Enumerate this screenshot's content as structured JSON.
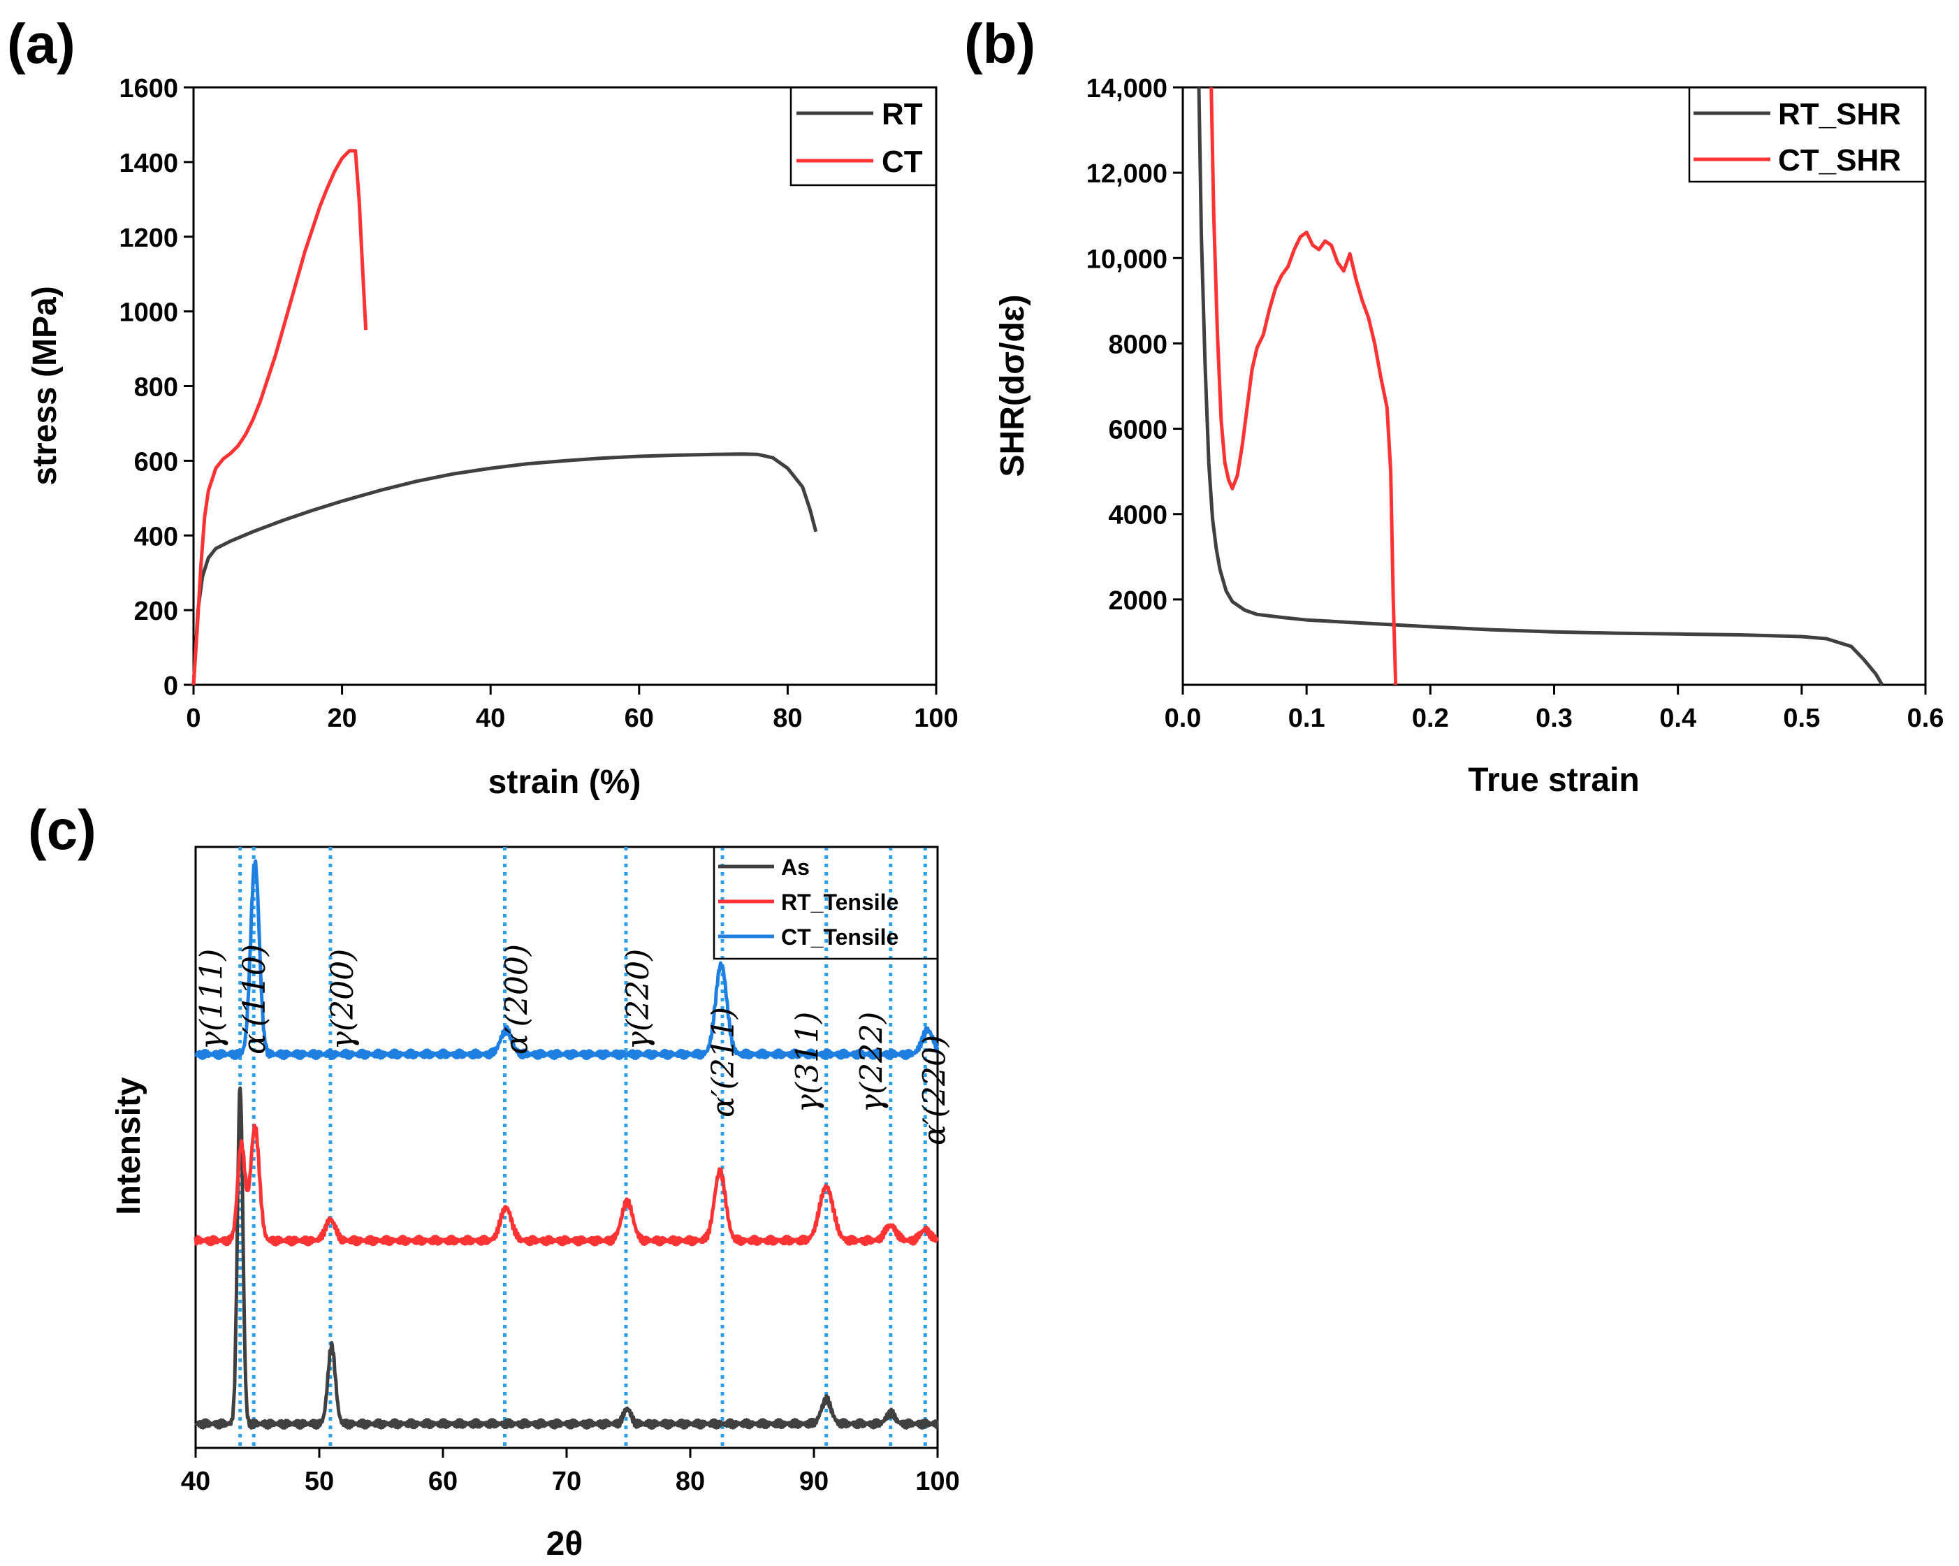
{
  "panel_labels": [
    "(a)",
    "(b)",
    "(c)"
  ],
  "chart_data": [
    {
      "id": "a",
      "type": "line",
      "xlabel": "strain (%)",
      "ylabel": "stress (MPa)",
      "xlim": [
        0,
        100
      ],
      "ylim": [
        0,
        1600
      ],
      "xticks": [
        0,
        20,
        40,
        60,
        80,
        100
      ],
      "yticks": [
        0,
        200,
        400,
        600,
        800,
        1000,
        1200,
        1400,
        1600
      ],
      "xtick_labels": [
        "0",
        "20",
        "40",
        "60",
        "80",
        "100"
      ],
      "ytick_labels": [
        "0",
        "200",
        "400",
        "600",
        "800",
        "1000",
        "1200",
        "1400",
        "1600"
      ],
      "legend": "top-right",
      "series": [
        {
          "name": "RT",
          "color": "#404040",
          "x": [
            0,
            0.6,
            1.2,
            2,
            3,
            5,
            8,
            12,
            16,
            20,
            25,
            30,
            35,
            40,
            45,
            50,
            55,
            60,
            65,
            70,
            74,
            76,
            78,
            80,
            82,
            83,
            83.8
          ],
          "y": [
            0,
            200,
            290,
            340,
            365,
            385,
            410,
            440,
            467,
            492,
            520,
            545,
            565,
            580,
            592,
            600,
            607,
            612,
            615,
            617,
            618,
            617,
            608,
            580,
            530,
            470,
            410
          ]
        },
        {
          "name": "CT",
          "color": "#ff3333",
          "x": [
            0,
            0.5,
            1,
            1.5,
            2,
            3,
            4,
            5,
            6,
            7,
            8,
            9,
            10,
            11,
            12,
            13,
            14,
            15,
            16,
            17,
            18,
            19,
            20,
            21,
            21.8,
            22.3,
            22.8,
            23.2
          ],
          "y": [
            0,
            150,
            320,
            450,
            520,
            580,
            605,
            620,
            640,
            670,
            710,
            760,
            820,
            880,
            950,
            1020,
            1090,
            1160,
            1220,
            1280,
            1330,
            1375,
            1410,
            1430,
            1430,
            1300,
            1100,
            950
          ]
        }
      ]
    },
    {
      "id": "b",
      "type": "line",
      "xlabel": "True strain",
      "ylabel": "SHR(dσ/dε)",
      "xlim": [
        0,
        0.6
      ],
      "ylim": [
        0,
        14000
      ],
      "xticks": [
        0,
        0.1,
        0.2,
        0.3,
        0.4,
        0.5,
        0.6
      ],
      "yticks": [
        2000,
        4000,
        6000,
        8000,
        10000,
        12000,
        14000
      ],
      "xtick_labels": [
        "0.0",
        "0.1",
        "0.2",
        "0.3",
        "0.4",
        "0.5",
        "0.6"
      ],
      "ytick_labels": [
        "2000",
        "4000",
        "6000",
        "8000",
        "10,000",
        "12,000",
        "14,000"
      ],
      "legend": "top-right",
      "series": [
        {
          "name": "RT_SHR",
          "color": "#404040",
          "x": [
            0.013,
            0.015,
            0.018,
            0.021,
            0.024,
            0.027,
            0.03,
            0.035,
            0.04,
            0.05,
            0.06,
            0.08,
            0.1,
            0.15,
            0.2,
            0.25,
            0.3,
            0.35,
            0.4,
            0.45,
            0.5,
            0.52,
            0.54,
            0.55,
            0.56,
            0.565
          ],
          "y": [
            14000,
            10500,
            7500,
            5200,
            3900,
            3200,
            2700,
            2200,
            1950,
            1750,
            1650,
            1580,
            1520,
            1440,
            1360,
            1290,
            1240,
            1210,
            1190,
            1170,
            1130,
            1080,
            900,
            600,
            250,
            0
          ]
        },
        {
          "name": "CT_SHR",
          "color": "#ff3333",
          "x": [
            0.023,
            0.025,
            0.028,
            0.031,
            0.034,
            0.037,
            0.04,
            0.044,
            0.048,
            0.052,
            0.056,
            0.06,
            0.065,
            0.07,
            0.075,
            0.08,
            0.085,
            0.09,
            0.095,
            0.1,
            0.105,
            0.11,
            0.115,
            0.12,
            0.125,
            0.13,
            0.135,
            0.14,
            0.145,
            0.15,
            0.155,
            0.16,
            0.165,
            0.168,
            0.17,
            0.172
          ],
          "y": [
            14000,
            11000,
            8200,
            6200,
            5200,
            4800,
            4600,
            4900,
            5600,
            6500,
            7400,
            7900,
            8200,
            8800,
            9300,
            9600,
            9800,
            10200,
            10500,
            10600,
            10300,
            10200,
            10400,
            10300,
            9900,
            9700,
            10100,
            9500,
            9000,
            8600,
            8000,
            7200,
            6500,
            5000,
            2000,
            0
          ]
        }
      ]
    },
    {
      "id": "c",
      "type": "line",
      "xlabel": "2θ",
      "ylabel": "Intensity",
      "xlim": [
        40,
        100
      ],
      "xticks": [
        40,
        50,
        60,
        70,
        80,
        90,
        100
      ],
      "xtick_labels": [
        "40",
        "50",
        "60",
        "70",
        "80",
        "90",
        "100"
      ],
      "legend": "top-right",
      "series": [
        {
          "name": "As",
          "color": "#404040",
          "baseline": 0.04,
          "peaks": [
            {
              "pos": 43.6,
              "h": 0.56,
              "w": 0.22
            },
            {
              "pos": 51.0,
              "h": 0.13,
              "w": 0.3
            },
            {
              "pos": 74.9,
              "h": 0.025,
              "w": 0.3
            },
            {
              "pos": 91.0,
              "h": 0.04,
              "w": 0.4
            },
            {
              "pos": 96.2,
              "h": 0.018,
              "w": 0.35
            }
          ]
        },
        {
          "name": "RT_Tensile",
          "color": "#ff3333",
          "baseline": 0.345,
          "peaks": [
            {
              "pos": 43.7,
              "h": 0.16,
              "w": 0.3
            },
            {
              "pos": 44.8,
              "h": 0.19,
              "w": 0.35
            },
            {
              "pos": 50.9,
              "h": 0.035,
              "w": 0.4
            },
            {
              "pos": 65.1,
              "h": 0.055,
              "w": 0.45
            },
            {
              "pos": 74.9,
              "h": 0.065,
              "w": 0.45
            },
            {
              "pos": 82.4,
              "h": 0.115,
              "w": 0.45
            },
            {
              "pos": 91.0,
              "h": 0.09,
              "w": 0.55
            },
            {
              "pos": 96.2,
              "h": 0.025,
              "w": 0.45
            },
            {
              "pos": 99.0,
              "h": 0.018,
              "w": 0.4
            }
          ]
        },
        {
          "name": "CT_Tensile",
          "color": "#1f7fe0",
          "baseline": 0.655,
          "peaks": [
            {
              "pos": 44.8,
              "h": 0.32,
              "w": 0.35
            },
            {
              "pos": 65.1,
              "h": 0.04,
              "w": 0.45
            },
            {
              "pos": 82.5,
              "h": 0.15,
              "w": 0.45
            },
            {
              "pos": 99.2,
              "h": 0.04,
              "w": 0.45
            }
          ]
        }
      ],
      "reference_lines": [
        43.6,
        44.7,
        50.9,
        65.0,
        74.8,
        82.6,
        91.0,
        96.2,
        99.0
      ],
      "peak_labels": [
        {
          "text": "γ(111)",
          "pos": 43.6
        },
        {
          "text": "α′(110)",
          "pos": 44.7
        },
        {
          "text": "γ(200)",
          "pos": 50.9
        },
        {
          "text": "α′(200)",
          "pos": 65.0
        },
        {
          "text": "γ(220)",
          "pos": 74.8
        },
        {
          "text": "α′(211)",
          "pos": 82.6
        },
        {
          "text": "γ(311)",
          "pos": 91.0
        },
        {
          "text": "γ(222)",
          "pos": 96.2
        },
        {
          "text": "α′(220)",
          "pos": 99.0
        }
      ]
    }
  ]
}
